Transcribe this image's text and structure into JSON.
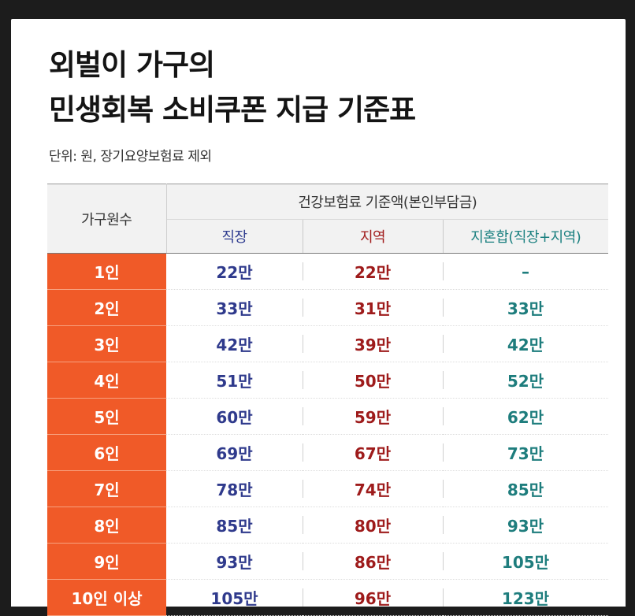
{
  "title": [
    "외벌이 가구의",
    "민생회복 소비쿠폰 지급 기준표"
  ],
  "unit_note": "단위: 원, 장기요양보험료 제외",
  "colors": {
    "accent": "#f05a28",
    "jikjang": "#2f3a8c",
    "jiyeok": "#9e1b1b",
    "honhap": "#1e7d7d"
  },
  "table": {
    "row_header": "가구원수",
    "group_header": "건강보험료 기준액(본인부담금)",
    "columns": [
      "직장",
      "지역",
      "지혼합(직장+지역)"
    ],
    "rows": [
      {
        "size": "1인",
        "jikjang": "22만",
        "jiyeok": "22만",
        "honhap": "–"
      },
      {
        "size": "2인",
        "jikjang": "33만",
        "jiyeok": "31만",
        "honhap": "33만"
      },
      {
        "size": "3인",
        "jikjang": "42만",
        "jiyeok": "39만",
        "honhap": "42만"
      },
      {
        "size": "4인",
        "jikjang": "51만",
        "jiyeok": "50만",
        "honhap": "52만"
      },
      {
        "size": "5인",
        "jikjang": "60만",
        "jiyeok": "59만",
        "honhap": "62만"
      },
      {
        "size": "6인",
        "jikjang": "69만",
        "jiyeok": "67만",
        "honhap": "73만"
      },
      {
        "size": "7인",
        "jikjang": "78만",
        "jiyeok": "74만",
        "honhap": "85만"
      },
      {
        "size": "8인",
        "jikjang": "85만",
        "jiyeok": "80만",
        "honhap": "93만"
      },
      {
        "size": "9인",
        "jikjang": "93만",
        "jiyeok": "86만",
        "honhap": "105만"
      },
      {
        "size": "10인 이상",
        "jikjang": "105만",
        "jiyeok": "96만",
        "honhap": "123만"
      }
    ]
  }
}
